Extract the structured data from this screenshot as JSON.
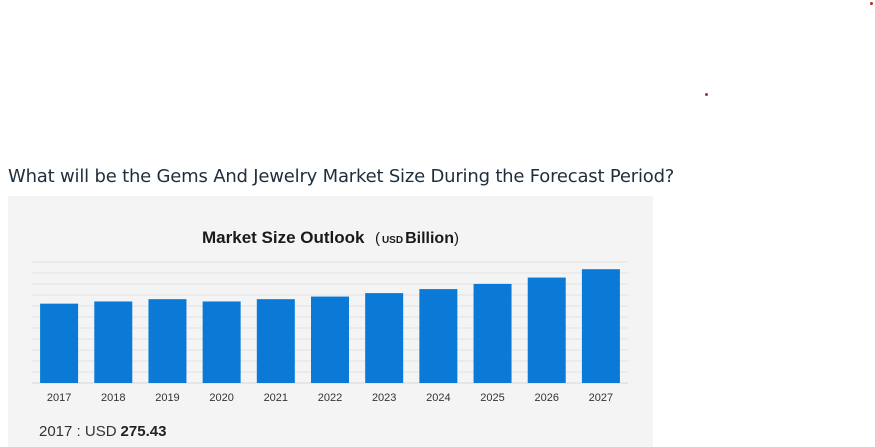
{
  "question": "What will be the Gems And Jewelry Market Size During the Forecast Period?",
  "colors": {
    "bar": "#0a7ad6",
    "grid": "#dcdcdc",
    "accent_dot": "#c0262d"
  },
  "footer": {
    "label": "2017 : USD",
    "value": "275.43"
  },
  "chart_data": {
    "type": "bar",
    "title": "Market Size Outlook",
    "title_unit_prefix": "(",
    "title_unit": "USD",
    "title_unit_name": "Billion",
    "title_unit_suffix": ")",
    "categories": [
      "2017",
      "2018",
      "2019",
      "2020",
      "2021",
      "2022",
      "2023",
      "2024",
      "2025",
      "2026",
      "2027"
    ],
    "values": [
      275.43,
      283,
      291,
      283,
      291,
      300,
      312,
      326,
      344,
      366,
      395
    ],
    "ylim": [
      0,
      420
    ],
    "grid": true,
    "legend": false
  }
}
